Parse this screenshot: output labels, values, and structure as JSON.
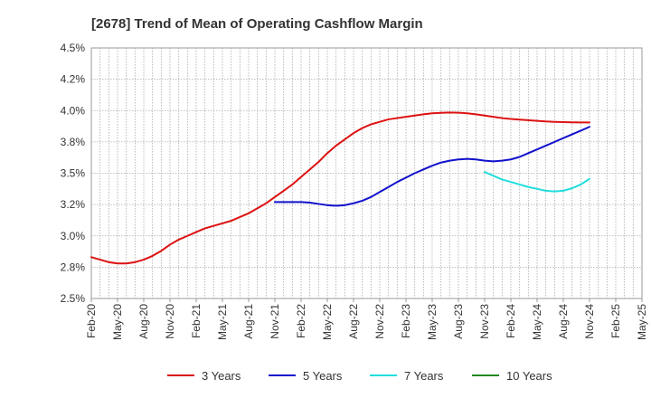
{
  "chart_data": {
    "type": "line",
    "title": "[2678]  Trend of Mean of Operating Cashflow Margin",
    "xlabel": "",
    "ylabel": "",
    "ylim": [
      2.5,
      4.5
    ],
    "y_ticks": [
      "2.5%",
      "2.8%",
      "3.0%",
      "3.2%",
      "3.5%",
      "3.8%",
      "4.0%",
      "4.2%",
      "4.5%"
    ],
    "categories": [
      "Feb-20",
      "May-20",
      "Aug-20",
      "Nov-20",
      "Feb-21",
      "May-21",
      "Aug-21",
      "Nov-21",
      "Feb-22",
      "May-22",
      "Aug-22",
      "Nov-22",
      "Feb-23",
      "May-23",
      "Aug-23",
      "Nov-23",
      "Feb-24",
      "May-24",
      "Aug-24",
      "Nov-24",
      "Feb-25",
      "May-25"
    ],
    "grid": true,
    "legend_position": "bottom",
    "series": [
      {
        "name": "3 Years",
        "color": "#dd1111",
        "x": [
          "Feb-20",
          "Mar-20",
          "Apr-20",
          "May-20",
          "Jun-20",
          "Jul-20",
          "Aug-20",
          "Sep-20",
          "Oct-20",
          "Nov-20",
          "Dec-20",
          "Jan-21",
          "Feb-21",
          "Mar-21",
          "Apr-21",
          "May-21",
          "Jun-21",
          "Jul-21",
          "Aug-21",
          "Sep-21",
          "Oct-21",
          "Nov-21",
          "Dec-21",
          "Jan-22",
          "Feb-22",
          "Mar-22",
          "Apr-22",
          "May-22",
          "Jun-22",
          "Jul-22",
          "Aug-22",
          "Sep-22",
          "Oct-22",
          "Nov-22",
          "Dec-22",
          "Jan-23",
          "Feb-23",
          "Mar-23",
          "Apr-23",
          "May-23",
          "Jun-23",
          "Jul-23",
          "Aug-23",
          "Sep-23",
          "Oct-23",
          "Nov-23",
          "Dec-23",
          "Jan-24",
          "Feb-24",
          "Mar-24",
          "Apr-24",
          "May-24",
          "Jun-24",
          "Jul-24",
          "Aug-24",
          "Sep-24",
          "Oct-24",
          "Nov-24"
        ],
        "values": [
          2.83,
          2.81,
          2.79,
          2.78,
          2.78,
          2.79,
          2.81,
          2.84,
          2.88,
          2.93,
          2.97,
          3.0,
          3.03,
          3.06,
          3.08,
          3.1,
          3.12,
          3.15,
          3.18,
          3.22,
          3.26,
          3.31,
          3.36,
          3.41,
          3.47,
          3.53,
          3.59,
          3.66,
          3.72,
          3.77,
          3.82,
          3.86,
          3.89,
          3.91,
          3.93,
          3.94,
          3.95,
          3.96,
          3.97,
          3.978,
          3.982,
          3.985,
          3.983,
          3.978,
          3.97,
          3.96,
          3.95,
          3.94,
          3.933,
          3.928,
          3.923,
          3.918,
          3.913,
          3.91,
          3.908,
          3.906,
          3.905,
          3.905
        ]
      },
      {
        "name": "5 Years",
        "color": "#1111cc",
        "x": [
          "Nov-21",
          "Dec-21",
          "Jan-22",
          "Feb-22",
          "Mar-22",
          "Apr-22",
          "May-22",
          "Jun-22",
          "Jul-22",
          "Aug-22",
          "Sep-22",
          "Oct-22",
          "Nov-22",
          "Dec-22",
          "Jan-23",
          "Feb-23",
          "Mar-23",
          "Apr-23",
          "May-23",
          "Jun-23",
          "Jul-23",
          "Aug-23",
          "Sep-23",
          "Oct-23",
          "Nov-23",
          "Dec-23",
          "Jan-24",
          "Feb-24",
          "Mar-24",
          "Apr-24",
          "May-24",
          "Jun-24",
          "Jul-24",
          "Aug-24",
          "Sep-24",
          "Oct-24",
          "Nov-24"
        ],
        "values": [
          3.27,
          3.27,
          3.27,
          3.27,
          3.265,
          3.255,
          3.245,
          3.24,
          3.245,
          3.26,
          3.28,
          3.31,
          3.35,
          3.39,
          3.43,
          3.465,
          3.5,
          3.53,
          3.56,
          3.585,
          3.6,
          3.61,
          3.615,
          3.61,
          3.6,
          3.595,
          3.6,
          3.61,
          3.63,
          3.66,
          3.69,
          3.72,
          3.75,
          3.78,
          3.81,
          3.84,
          3.87
        ]
      },
      {
        "name": "7 Years",
        "color": "#22dddd",
        "x": [
          "Nov-23",
          "Dec-23",
          "Jan-24",
          "Feb-24",
          "Mar-24",
          "Apr-24",
          "May-24",
          "Jun-24",
          "Jul-24",
          "Aug-24",
          "Sep-24",
          "Oct-24",
          "Nov-24"
        ],
        "values": [
          3.51,
          3.48,
          3.45,
          3.43,
          3.41,
          3.39,
          3.375,
          3.36,
          3.355,
          3.36,
          3.38,
          3.41,
          3.455
        ]
      },
      {
        "name": "10 Years",
        "color": "#228822",
        "x": [],
        "values": []
      }
    ]
  }
}
